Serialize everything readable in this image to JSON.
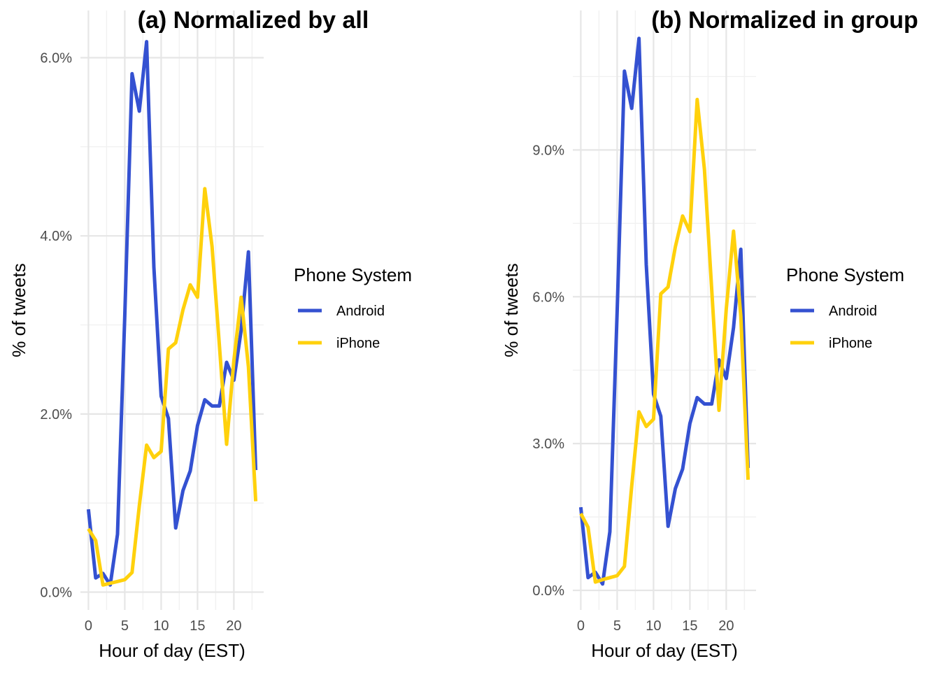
{
  "chart_data": [
    {
      "type": "line",
      "title": "(a) Normalized by all",
      "xlabel": "Hour of day (EST)",
      "ylabel": "% of tweets",
      "xlim": [
        -1.1,
        24.1
      ],
      "ylim": [
        -0.002,
        0.0653
      ],
      "x_ticks": [
        0,
        5,
        10,
        15,
        20
      ],
      "x_tick_labels": [
        "0",
        "5",
        "10",
        "15",
        "20"
      ],
      "y_ticks": [
        0,
        0.02,
        0.04,
        0.06
      ],
      "y_tick_labels": [
        "0.0%",
        "2.0%",
        "4.0%",
        "6.0%"
      ],
      "grid": true,
      "legend": {
        "title": "Phone System",
        "position": "right"
      },
      "x": [
        0,
        1,
        2,
        3,
        4,
        5,
        6,
        7,
        8,
        9,
        10,
        11,
        12,
        13,
        14,
        15,
        16,
        17,
        18,
        19,
        20,
        21,
        22,
        23
      ],
      "series": [
        {
          "name": "Android",
          "color": "#3451d1",
          "values": [
            0.0093,
            0.0016,
            0.0021,
            0.0008,
            0.0065,
            0.031,
            0.0582,
            0.054,
            0.0618,
            0.0365,
            0.022,
            0.0195,
            0.0072,
            0.0114,
            0.0136,
            0.0187,
            0.0216,
            0.0209,
            0.0209,
            0.0258,
            0.0238,
            0.0294,
            0.0382,
            0.0137
          ]
        },
        {
          "name": "iPhone",
          "color": "#ffd10c",
          "values": [
            0.0071,
            0.0058,
            0.0008,
            0.001,
            0.0012,
            0.0014,
            0.0022,
            0.0097,
            0.0165,
            0.0151,
            0.0158,
            0.0273,
            0.028,
            0.0317,
            0.0345,
            0.0331,
            0.0453,
            0.0388,
            0.0278,
            0.0166,
            0.026,
            0.0331,
            0.0253,
            0.0102
          ]
        }
      ]
    },
    {
      "type": "line",
      "title": "(b) Normalized in group",
      "xlabel": "Hour of day (EST)",
      "ylabel": "% of tweets",
      "xlim": [
        -1.1,
        24.1
      ],
      "ylim": [
        -0.004,
        0.1185
      ],
      "x_ticks": [
        0,
        5,
        10,
        15,
        20
      ],
      "x_tick_labels": [
        "0",
        "5",
        "10",
        "15",
        "20"
      ],
      "y_ticks": [
        0,
        0.03,
        0.06,
        0.09
      ],
      "y_tick_labels": [
        "0.0%",
        "3.0%",
        "6.0%",
        "9.0%"
      ],
      "grid": true,
      "legend": {
        "title": "Phone System",
        "position": "right"
      },
      "x": [
        0,
        1,
        2,
        3,
        4,
        5,
        6,
        7,
        8,
        9,
        10,
        11,
        12,
        13,
        14,
        15,
        16,
        17,
        18,
        19,
        20,
        21,
        22,
        23
      ],
      "series": [
        {
          "name": "Android",
          "color": "#3451d1",
          "values": [
            0.017,
            0.0026,
            0.0037,
            0.0013,
            0.012,
            0.057,
            0.1061,
            0.0985,
            0.1128,
            0.0666,
            0.0401,
            0.0356,
            0.0131,
            0.0208,
            0.0248,
            0.0341,
            0.0394,
            0.0381,
            0.0381,
            0.0471,
            0.0433,
            0.0537,
            0.0697,
            0.025
          ]
        },
        {
          "name": "iPhone",
          "color": "#ffd10c",
          "values": [
            0.0157,
            0.0129,
            0.0017,
            0.0022,
            0.0026,
            0.003,
            0.0049,
            0.0213,
            0.0365,
            0.0335,
            0.035,
            0.0606,
            0.062,
            0.0702,
            0.0765,
            0.0733,
            0.1003,
            0.086,
            0.0615,
            0.0368,
            0.0575,
            0.0734,
            0.056,
            0.0226
          ]
        }
      ]
    }
  ]
}
